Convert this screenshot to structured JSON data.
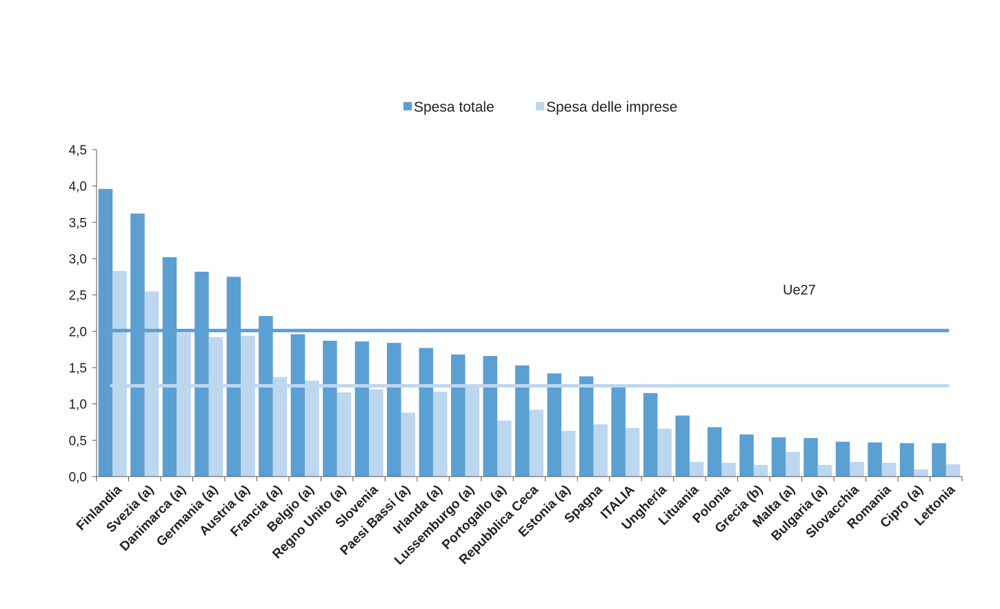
{
  "chart_data": {
    "type": "bar",
    "categories": [
      "Finlandia",
      "Svezia (a)",
      "Danimarca (a)",
      "Germania (a)",
      "Austria (a)",
      "Francia (a)",
      "Belgio (a)",
      "Regno Unito (a)",
      "Slovenia",
      "Paesi Bassi (a)",
      "Irlanda (a)",
      "Lussemburgo (a)",
      "Portogallo (a)",
      "Repubblica Ceca",
      "Estonia (a)",
      "Spagna",
      "ITALIA",
      "Ungheria",
      "Lituania",
      "Polonia",
      "Grecia (b)",
      "Malta (a)",
      "Bulgaria (a)",
      "Slovacchia",
      "Romania",
      "Cipro (a)",
      "Lettonia"
    ],
    "series": [
      {
        "name": "Spesa totale",
        "color": "#5B9FD3",
        "values": [
          3.96,
          3.62,
          3.02,
          2.82,
          2.75,
          2.21,
          1.96,
          1.87,
          1.86,
          1.84,
          1.77,
          1.68,
          1.66,
          1.53,
          1.42,
          1.38,
          1.23,
          1.15,
          0.84,
          0.68,
          0.58,
          0.54,
          0.53,
          0.48,
          0.47,
          0.46,
          0.46
        ]
      },
      {
        "name": "Spesa delle imprese",
        "color": "#BDD7EE",
        "values": [
          2.83,
          2.55,
          1.98,
          1.92,
          1.94,
          1.37,
          1.32,
          1.16,
          1.2,
          0.88,
          1.17,
          1.26,
          0.77,
          0.92,
          0.63,
          0.72,
          0.67,
          0.66,
          0.2,
          0.19,
          0.16,
          0.34,
          0.16,
          0.2,
          0.19,
          0.1,
          0.17
        ]
      }
    ],
    "reference_lines": [
      {
        "series": "Spesa totale",
        "value": 2.01,
        "color": "#5B9FD3"
      },
      {
        "series": "Spesa delle imprese",
        "value": 1.25,
        "color": "#BDD7EE"
      }
    ],
    "annotation": "Ue27",
    "yticks": [
      "0,0",
      "0,5",
      "1,0",
      "1,5",
      "2,0",
      "2,5",
      "3,0",
      "3,5",
      "4,0",
      "4,5"
    ],
    "ylim": [
      0,
      4.5
    ],
    "grid": false,
    "legend_position": "top-center",
    "title": "",
    "xlabel": "",
    "ylabel": ""
  }
}
